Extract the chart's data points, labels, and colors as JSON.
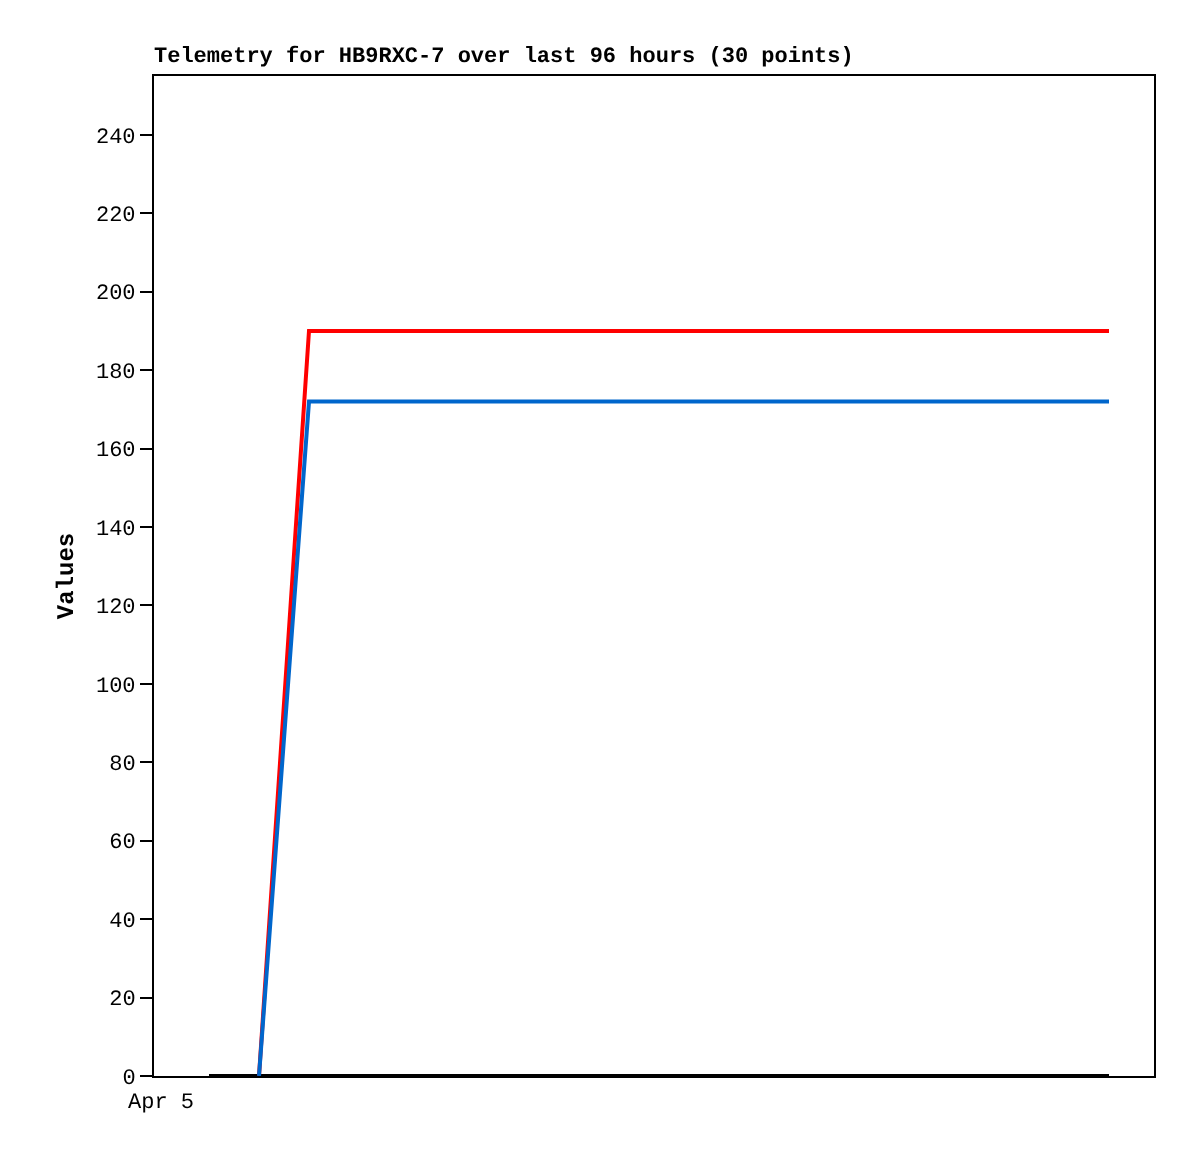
{
  "chart_data": {
    "type": "line",
    "title": "Telemetry for HB9RXC-7 over last 96 hours (30 points)",
    "ylabel": "Values",
    "annotations": [
      "Apr 5"
    ],
    "categories": [
      null,
      null,
      null,
      null,
      null,
      null,
      null,
      null,
      null,
      null,
      null,
      null,
      null,
      null,
      null,
      null,
      null,
      null,
      null
    ],
    "ylim": [
      0,
      255
    ],
    "yticks": [
      0,
      20,
      40,
      60,
      80,
      100,
      120,
      140,
      160,
      180,
      200,
      220,
      240
    ],
    "grid": false,
    "marker": "none",
    "line_style": "solid",
    "series": [
      {
        "color": "#000000",
        "values": [
          0,
          0,
          0,
          0,
          0,
          0,
          0,
          0,
          0,
          0,
          0,
          0,
          0,
          0,
          0,
          0,
          0,
          0,
          0
        ]
      },
      {
        "color": "#ff0000",
        "values": [
          null,
          0,
          190,
          190,
          190,
          190,
          190,
          190,
          190,
          190,
          190,
          190,
          190,
          190,
          190,
          190,
          190,
          190,
          190
        ]
      },
      {
        "color": "#0066cc",
        "values": [
          null,
          0,
          172,
          172,
          172,
          172,
          172,
          172,
          172,
          172,
          172,
          172,
          172,
          172,
          172,
          172,
          172,
          172,
          172
        ]
      }
    ]
  }
}
